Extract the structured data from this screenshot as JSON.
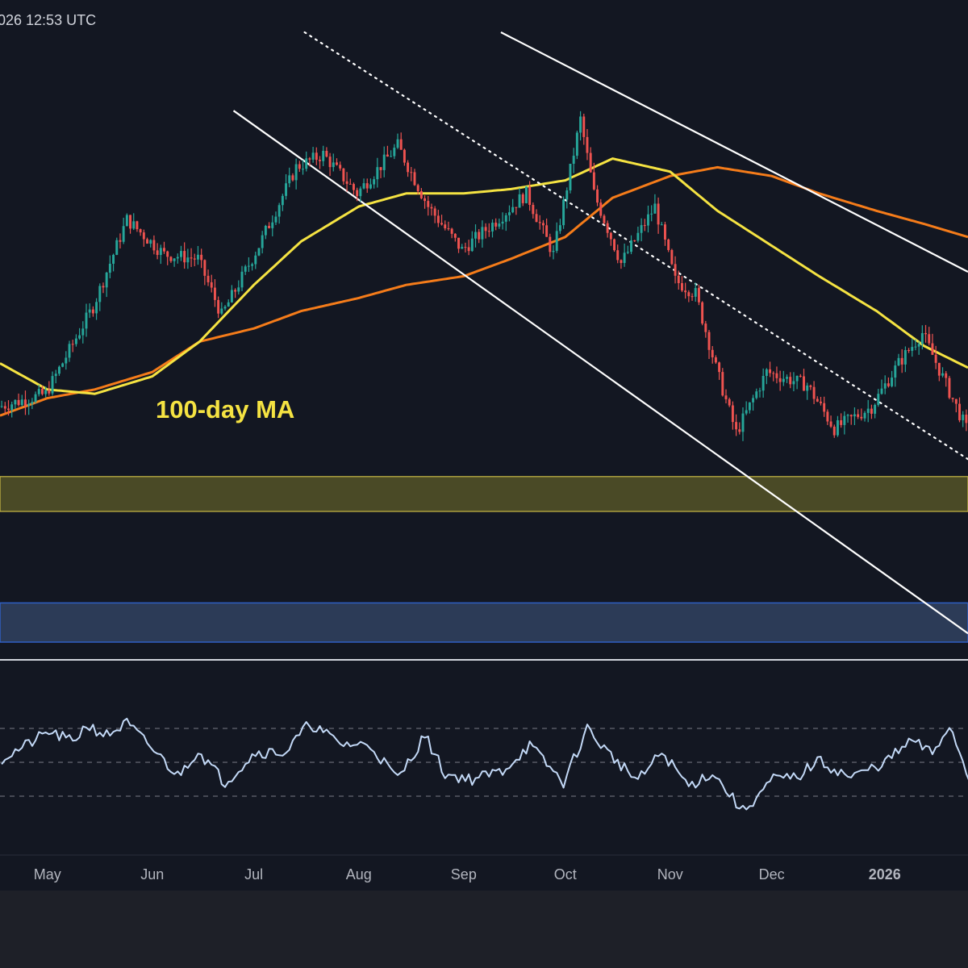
{
  "header": {
    "timestamp": "026 12:53 UTC"
  },
  "annotations": {
    "ma100_label": "100-day MA"
  },
  "x_axis": {
    "labels": [
      "May",
      "Jun",
      "Jul",
      "Aug",
      "Sep",
      "Oct",
      "Nov",
      "Dec",
      "2026"
    ]
  },
  "colors": {
    "background": "#131722",
    "bottom_bar": "#1e2028",
    "bull": "#26a69a",
    "bear": "#ef5350",
    "ma100": "#f5e342",
    "ma200": "#f57c1a",
    "trendline": "#ffffff",
    "zone_yellow": "#4a4a26",
    "zone_blue": "#2c3b57",
    "rsi": "#c3d9f7",
    "axis_text": "#b2b5be"
  },
  "chart_data": [
    {
      "type": "candlestick",
      "title": "",
      "xlabel": "",
      "ylabel": "",
      "grid": false,
      "legend": "none",
      "x_range": [
        "2025-04-17",
        "2026-01-28"
      ],
      "y_units": "chart-relative (no price scale shown)",
      "ylim": [
        0,
        100
      ],
      "key_points": [
        {
          "date": "2025-04-17",
          "value": 14
        },
        {
          "date": "2025-05-01",
          "value": 17
        },
        {
          "date": "2025-05-15",
          "value": 37
        },
        {
          "date": "2025-05-25",
          "value": 57
        },
        {
          "date": "2025-06-05",
          "value": 49
        },
        {
          "date": "2025-06-15",
          "value": 48
        },
        {
          "date": "2025-06-22",
          "value": 35
        },
        {
          "date": "2025-07-03",
          "value": 51
        },
        {
          "date": "2025-07-14",
          "value": 69
        },
        {
          "date": "2025-07-22",
          "value": 72
        },
        {
          "date": "2025-08-01",
          "value": 63
        },
        {
          "date": "2025-08-13",
          "value": 74
        },
        {
          "date": "2025-08-22",
          "value": 60
        },
        {
          "date": "2025-09-01",
          "value": 50
        },
        {
          "date": "2025-09-10",
          "value": 56
        },
        {
          "date": "2025-09-20",
          "value": 63
        },
        {
          "date": "2025-09-28",
          "value": 49
        },
        {
          "date": "2025-10-06",
          "value": 80
        },
        {
          "date": "2025-10-10",
          "value": 63
        },
        {
          "date": "2025-10-18",
          "value": 47
        },
        {
          "date": "2025-10-28",
          "value": 60
        },
        {
          "date": "2025-11-03",
          "value": 43
        },
        {
          "date": "2025-11-09",
          "value": 40
        },
        {
          "date": "2025-11-15",
          "value": 23
        },
        {
          "date": "2025-11-21",
          "value": 8
        },
        {
          "date": "2025-11-30",
          "value": 22
        },
        {
          "date": "2025-12-12",
          "value": 19
        },
        {
          "date": "2025-12-20",
          "value": 9
        },
        {
          "date": "2025-12-31",
          "value": 14
        },
        {
          "date": "2026-01-08",
          "value": 24
        },
        {
          "date": "2026-01-15",
          "value": 31
        },
        {
          "date": "2026-01-28",
          "value": 9
        }
      ],
      "overlays": {
        "ma100": [
          {
            "date": "2025-04-17",
            "value": 24
          },
          {
            "date": "2025-05-01",
            "value": 18
          },
          {
            "date": "2025-05-15",
            "value": 17
          },
          {
            "date": "2025-06-01",
            "value": 21
          },
          {
            "date": "2025-06-15",
            "value": 29
          },
          {
            "date": "2025-07-01",
            "value": 42
          },
          {
            "date": "2025-07-15",
            "value": 52
          },
          {
            "date": "2025-08-01",
            "value": 60
          },
          {
            "date": "2025-08-15",
            "value": 63
          },
          {
            "date": "2025-09-01",
            "value": 63
          },
          {
            "date": "2025-09-15",
            "value": 64
          },
          {
            "date": "2025-10-01",
            "value": 66
          },
          {
            "date": "2025-10-15",
            "value": 71
          },
          {
            "date": "2025-11-01",
            "value": 68
          },
          {
            "date": "2025-11-15",
            "value": 59
          },
          {
            "date": "2025-12-01",
            "value": 51
          },
          {
            "date": "2025-12-15",
            "value": 44
          },
          {
            "date": "2026-01-01",
            "value": 36
          },
          {
            "date": "2026-01-15",
            "value": 28
          },
          {
            "date": "2026-01-28",
            "value": 23
          }
        ],
        "ma200": [
          {
            "date": "2025-04-17",
            "value": 12
          },
          {
            "date": "2025-05-01",
            "value": 16
          },
          {
            "date": "2025-05-15",
            "value": 18
          },
          {
            "date": "2025-06-01",
            "value": 22
          },
          {
            "date": "2025-06-15",
            "value": 29
          },
          {
            "date": "2025-07-01",
            "value": 32
          },
          {
            "date": "2025-07-15",
            "value": 36
          },
          {
            "date": "2025-08-01",
            "value": 39
          },
          {
            "date": "2025-08-15",
            "value": 42
          },
          {
            "date": "2025-09-01",
            "value": 44
          },
          {
            "date": "2025-09-15",
            "value": 48
          },
          {
            "date": "2025-10-01",
            "value": 53
          },
          {
            "date": "2025-10-15",
            "value": 62
          },
          {
            "date": "2025-11-01",
            "value": 67
          },
          {
            "date": "2025-11-15",
            "value": 69
          },
          {
            "date": "2025-12-01",
            "value": 67
          },
          {
            "date": "2025-12-15",
            "value": 63
          },
          {
            "date": "2026-01-01",
            "value": 59
          },
          {
            "date": "2026-01-15",
            "value": 56
          },
          {
            "date": "2026-01-28",
            "value": 53
          }
        ],
        "channel_upper": [
          {
            "date": "2025-09-12",
            "value": 100
          },
          {
            "date": "2026-01-28",
            "value": 45
          }
        ],
        "channel_mid_dotted": [
          {
            "date": "2025-07-16",
            "value": 100
          },
          {
            "date": "2026-01-28",
            "value": 2
          }
        ],
        "channel_lower": [
          {
            "date": "2025-06-25",
            "value": 82
          },
          {
            "date": "2026-01-28",
            "value": -38
          }
        ],
        "support_zone_yellow": [
          -2,
          -10
        ],
        "support_zone_blue": [
          -31,
          -40
        ]
      }
    },
    {
      "type": "line",
      "title": "",
      "xlabel": "",
      "ylabel": "",
      "series_name": "",
      "ylim": [
        0,
        100
      ],
      "guide_levels": [
        70,
        50,
        30
      ],
      "x_range": [
        "2025-04-17",
        "2026-01-28"
      ],
      "key_points": [
        {
          "date": "2025-04-17",
          "value": 52
        },
        {
          "date": "2025-04-26",
          "value": 62
        },
        {
          "date": "2025-05-01",
          "value": 68
        },
        {
          "date": "2025-05-08",
          "value": 62
        },
        {
          "date": "2025-05-12",
          "value": 72
        },
        {
          "date": "2025-05-18",
          "value": 66
        },
        {
          "date": "2025-05-24",
          "value": 73
        },
        {
          "date": "2025-06-02",
          "value": 55
        },
        {
          "date": "2025-06-08",
          "value": 42
        },
        {
          "date": "2025-06-14",
          "value": 57
        },
        {
          "date": "2025-06-22",
          "value": 38
        },
        {
          "date": "2025-07-01",
          "value": 56
        },
        {
          "date": "2025-07-10",
          "value": 56
        },
        {
          "date": "2025-07-17",
          "value": 73
        },
        {
          "date": "2025-07-26",
          "value": 61
        },
        {
          "date": "2025-08-04",
          "value": 60
        },
        {
          "date": "2025-08-12",
          "value": 40
        },
        {
          "date": "2025-08-20",
          "value": 66
        },
        {
          "date": "2025-08-26",
          "value": 43
        },
        {
          "date": "2025-09-03",
          "value": 40
        },
        {
          "date": "2025-09-12",
          "value": 45
        },
        {
          "date": "2025-09-20",
          "value": 60
        },
        {
          "date": "2025-09-30",
          "value": 38
        },
        {
          "date": "2025-10-07",
          "value": 70
        },
        {
          "date": "2025-10-13",
          "value": 56
        },
        {
          "date": "2025-10-22",
          "value": 39
        },
        {
          "date": "2025-10-29",
          "value": 56
        },
        {
          "date": "2025-11-06",
          "value": 36
        },
        {
          "date": "2025-11-13",
          "value": 44
        },
        {
          "date": "2025-11-22",
          "value": 21
        },
        {
          "date": "2025-12-01",
          "value": 40
        },
        {
          "date": "2025-12-08",
          "value": 41
        },
        {
          "date": "2025-12-14",
          "value": 51
        },
        {
          "date": "2025-12-24",
          "value": 41
        },
        {
          "date": "2026-01-03",
          "value": 50
        },
        {
          "date": "2026-01-11",
          "value": 63
        },
        {
          "date": "2026-01-17",
          "value": 55
        },
        {
          "date": "2026-01-22",
          "value": 72
        },
        {
          "date": "2026-01-28",
          "value": 40
        }
      ]
    }
  ]
}
